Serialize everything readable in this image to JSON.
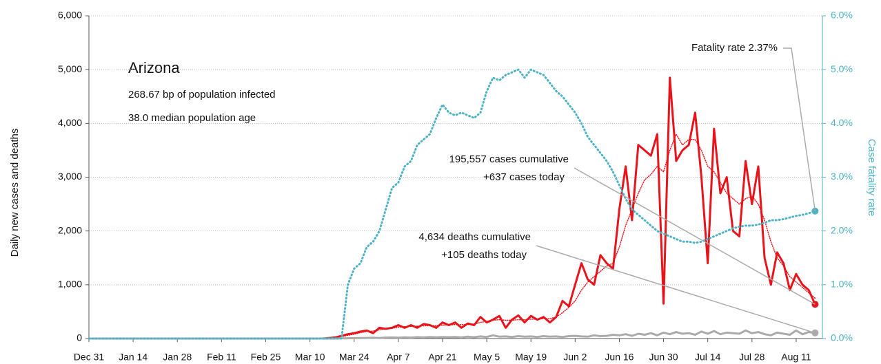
{
  "chart_data": {
    "type": "line",
    "title": "Arizona",
    "subtitle": [
      "268.67 bp of population infected",
      "38.0 median population age"
    ],
    "ylabel": "Daily new cases and deaths",
    "y2label": "Case fatality rate",
    "annotations": [
      {
        "lines": [
          "Fatality rate 2.37%"
        ],
        "series": 3
      },
      {
        "lines": [
          "195,557 cases cumulative",
          "+637 cases today"
        ],
        "series": 0
      },
      {
        "lines": [
          "4,634 deaths cumulative",
          "+105 deaths today"
        ],
        "series": 2
      }
    ],
    "categories": [
      "Dec 31",
      null,
      null,
      null,
      null,
      null,
      null,
      "Jan 14",
      null,
      null,
      null,
      null,
      null,
      null,
      "Jan 28",
      null,
      null,
      null,
      null,
      null,
      null,
      "Feb 11",
      null,
      null,
      null,
      null,
      null,
      null,
      "Feb 25",
      null,
      null,
      null,
      null,
      null,
      null,
      "Mar 10",
      null,
      null,
      null,
      null,
      null,
      null,
      "Mar 24",
      null,
      null,
      null,
      null,
      null,
      null,
      "Apr 7",
      null,
      null,
      null,
      null,
      null,
      null,
      "Apr 21",
      null,
      null,
      null,
      null,
      null,
      null,
      "May 5",
      null,
      null,
      null,
      null,
      null,
      null,
      "May 19",
      null,
      null,
      null,
      null,
      null,
      null,
      "Jun 2",
      null,
      null,
      null,
      null,
      null,
      null,
      "Jun 16",
      null,
      null,
      null,
      null,
      null,
      null,
      "Jun 30",
      null,
      null,
      null,
      null,
      null,
      null,
      "Jul 14",
      null,
      null,
      null,
      null,
      null,
      null,
      "Jul 28",
      null,
      null,
      null,
      null,
      null,
      null,
      "Aug 11",
      null,
      null,
      null
    ],
    "series": [
      {
        "color": "#e8141b",
        "dash": "solid",
        "width": 3,
        "values": [
          0,
          0,
          0,
          0,
          0,
          0,
          0,
          0,
          0,
          0,
          0,
          0,
          0,
          0,
          0,
          0,
          0,
          0,
          0,
          0,
          0,
          0,
          0,
          0,
          0,
          0,
          0,
          0,
          0,
          0,
          0,
          0,
          0,
          0,
          0,
          0,
          0,
          0,
          10,
          20,
          50,
          80,
          100,
          130,
          150,
          100,
          200,
          180,
          200,
          250,
          200,
          250,
          200,
          270,
          250,
          200,
          300,
          250,
          300,
          200,
          280,
          250,
          400,
          300,
          350,
          420,
          200,
          350,
          430,
          300,
          420,
          350,
          400,
          300,
          400,
          700,
          600,
          1000,
          1400,
          1100,
          1000,
          1550,
          1400,
          1300,
          2400,
          3200,
          2200,
          3600,
          3500,
          3400,
          3800,
          650,
          4850,
          3300,
          3500,
          3600,
          4200,
          3000,
          1400,
          3900,
          2700,
          3000,
          2000,
          1900,
          3300,
          2500,
          3200,
          1500,
          1000,
          1600,
          1400,
          900,
          1200,
          1000,
          900,
          637
        ]
      },
      {
        "color": "#e8141b",
        "dash": "dotted",
        "width": 1.5,
        "values": [
          0,
          0,
          0,
          0,
          0,
          0,
          0,
          0,
          0,
          0,
          0,
          0,
          0,
          0,
          0,
          0,
          0,
          0,
          0,
          0,
          0,
          0,
          0,
          0,
          0,
          0,
          0,
          0,
          0,
          0,
          0,
          0,
          0,
          0,
          0,
          0,
          0,
          0,
          5,
          15,
          35,
          60,
          80,
          110,
          130,
          140,
          160,
          180,
          190,
          210,
          220,
          225,
          230,
          235,
          240,
          240,
          250,
          255,
          260,
          260,
          260,
          270,
          300,
          320,
          340,
          350,
          340,
          340,
          350,
          350,
          360,
          360,
          370,
          370,
          400,
          480,
          580,
          700,
          900,
          1050,
          1150,
          1250,
          1350,
          1400,
          1700,
          2100,
          2400,
          2700,
          2950,
          3050,
          3200,
          3100,
          3500,
          3800,
          3600,
          3700,
          3700,
          3500,
          3200,
          3100,
          2900,
          2700,
          2600,
          2500,
          2600,
          2650,
          2500,
          2200,
          1800,
          1500,
          1350,
          1150,
          1050,
          950,
          850,
          750
        ]
      },
      {
        "color": "#aaaaaa",
        "dash": "solid",
        "width": 3,
        "values": [
          0,
          0,
          0,
          0,
          0,
          0,
          0,
          0,
          0,
          0,
          0,
          0,
          0,
          0,
          0,
          0,
          0,
          0,
          0,
          0,
          0,
          0,
          0,
          0,
          0,
          0,
          0,
          0,
          0,
          0,
          0,
          0,
          0,
          0,
          0,
          0,
          0,
          0,
          0,
          0,
          2,
          5,
          8,
          10,
          12,
          15,
          10,
          18,
          20,
          15,
          22,
          18,
          25,
          20,
          30,
          22,
          28,
          25,
          30,
          20,
          35,
          25,
          40,
          30,
          60,
          35,
          40,
          30,
          45,
          35,
          40,
          30,
          45,
          35,
          40,
          30,
          45,
          50,
          40,
          35,
          60,
          45,
          50,
          70,
          60,
          80,
          50,
          90,
          70,
          100,
          60,
          110,
          80,
          120,
          90,
          100,
          70,
          130,
          90,
          140,
          80,
          110,
          100,
          90,
          150,
          100,
          120,
          80,
          60,
          110,
          90,
          70,
          150,
          80,
          120,
          105
        ]
      },
      {
        "color": "#4bb3c4",
        "dash": "dotted",
        "width": 3,
        "axis": "y2",
        "values": [
          0,
          0,
          0,
          0,
          0,
          0,
          0,
          0,
          0,
          0,
          0,
          0,
          0,
          0,
          0,
          0,
          0,
          0,
          0,
          0,
          0,
          0,
          0,
          0,
          0,
          0,
          0,
          0,
          0,
          0,
          0,
          0,
          0,
          0,
          0,
          0,
          0,
          0,
          0,
          0,
          0,
          1.0,
          1.3,
          1.4,
          1.7,
          1.8,
          2.0,
          2.4,
          2.8,
          2.9,
          3.2,
          3.3,
          3.6,
          3.7,
          3.8,
          4.1,
          4.35,
          4.2,
          4.15,
          4.2,
          4.15,
          4.1,
          4.2,
          4.6,
          4.85,
          4.8,
          4.9,
          4.95,
          5.0,
          4.85,
          5.0,
          4.95,
          4.9,
          4.75,
          4.6,
          4.5,
          4.35,
          4.2,
          4.0,
          3.75,
          3.6,
          3.45,
          3.3,
          3.1,
          2.85,
          2.6,
          2.4,
          2.3,
          2.2,
          2.1,
          2.0,
          1.95,
          1.9,
          1.85,
          1.8,
          1.8,
          1.78,
          1.8,
          1.85,
          1.9,
          1.95,
          2.0,
          2.05,
          2.08,
          2.1,
          2.1,
          2.12,
          2.15,
          2.2,
          2.2,
          2.22,
          2.25,
          2.28,
          2.3,
          2.33,
          2.37
        ]
      }
    ],
    "ylim": [
      0,
      6000
    ],
    "yticks": [
      0,
      {
        "value": 1000,
        "label": "1,000"
      },
      {
        "value": 2000,
        "label": "2,000"
      },
      {
        "value": 3000,
        "label": "3,000"
      },
      {
        "value": 4000,
        "label": "4,000"
      },
      {
        "value": 5000,
        "label": "5,000"
      },
      {
        "value": 6000,
        "label": "6,000"
      }
    ],
    "y2lim": [
      0,
      6
    ],
    "y2ticks": [
      {
        "value": 0,
        "label": "0.0%"
      },
      {
        "value": 1,
        "label": "1.0%"
      },
      {
        "value": 2,
        "label": "2.0%"
      },
      {
        "value": 3,
        "label": "3.0%"
      },
      {
        "value": 4,
        "label": "4.0%"
      },
      {
        "value": 5,
        "label": "5.0%"
      },
      {
        "value": 6,
        "label": "6.0%"
      }
    ],
    "grid": true
  }
}
